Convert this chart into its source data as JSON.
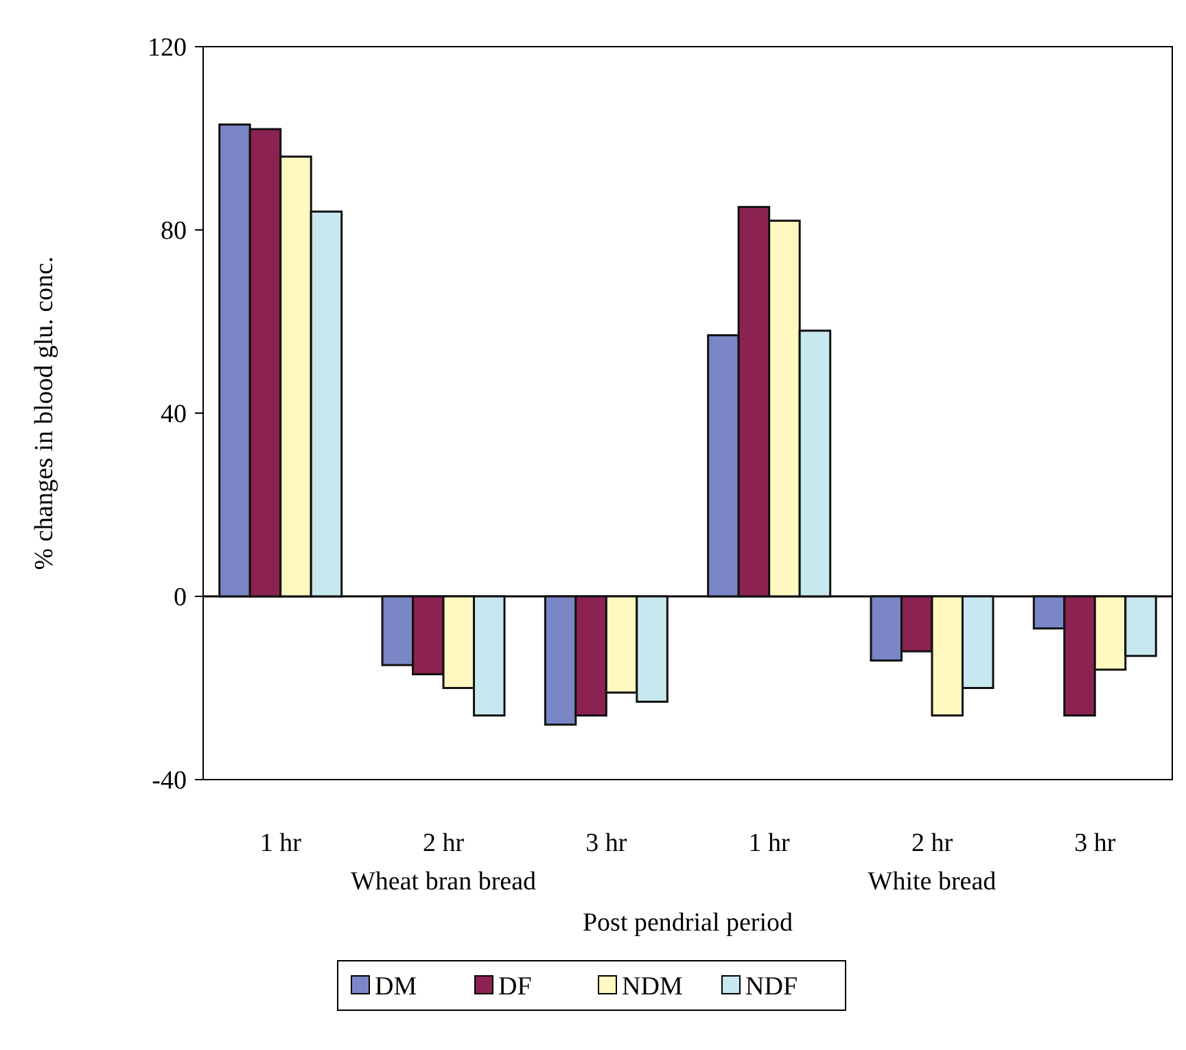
{
  "chart_data": {
    "type": "bar",
    "xlabel": "Post pendrial period",
    "ylabel": "% changes in blood glu. conc.",
    "categories": [
      "1 hr",
      "2 hr",
      "3 hr",
      "1 hr",
      "2 hr",
      "3 hr"
    ],
    "annotations": [
      "Wheat bran bread",
      "White bread"
    ],
    "series": [
      {
        "name": "DM",
        "color": "#7b86c6",
        "values": [
          103,
          -15,
          -28,
          57,
          -14,
          -7
        ]
      },
      {
        "name": "DF",
        "color": "#8b2252",
        "values": [
          102,
          -17,
          -26,
          85,
          -12,
          -26
        ]
      },
      {
        "name": "NDM",
        "color": "#fff8c0",
        "values": [
          96,
          -20,
          -21,
          82,
          -26,
          -16
        ]
      },
      {
        "name": "NDF",
        "color": "#c8e8f0",
        "values": [
          84,
          -26,
          -23,
          58,
          -20,
          -13
        ]
      }
    ],
    "ylim": [
      -40,
      120
    ],
    "yticks": [
      -40,
      0,
      40,
      80,
      120
    ],
    "legend": "bottom"
  }
}
